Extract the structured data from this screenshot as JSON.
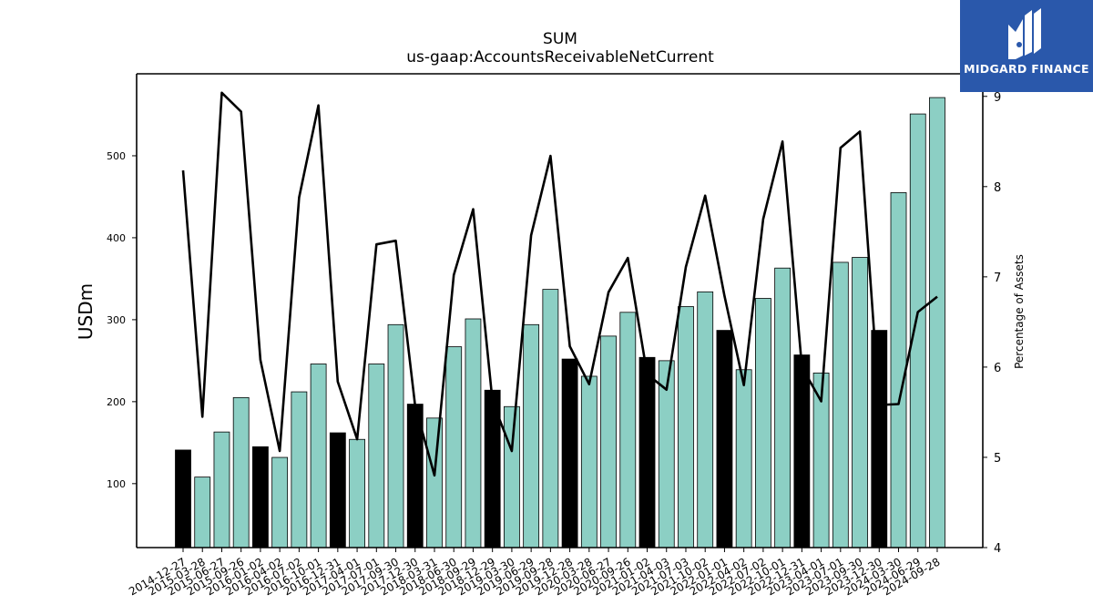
{
  "title": "SUM",
  "subtitle": "us-gaap:AccountsReceivableNetCurrent",
  "logo": {
    "text": "MIDGARD FINANCE",
    "icon": "midgard-m-logo-icon",
    "background": "#2a58ab"
  },
  "colors": {
    "bar": "#8ccfc4",
    "bar_q4": "#000000",
    "line": "#000000"
  },
  "chart_data": {
    "type": "bar",
    "title": "SUM",
    "subtitle": "us-gaap:AccountsReceivableNetCurrent",
    "ylabel": "USDm",
    "y2label": "Percentage of Assets",
    "ylim": [
      22,
      600
    ],
    "y2lim": [
      4,
      9.25
    ],
    "yticks": [
      100,
      200,
      300,
      400,
      500
    ],
    "y2ticks": [
      4,
      5,
      6,
      7,
      8,
      9
    ],
    "categories": [
      "2014-12-27",
      "2015-03-28",
      "2015-06-27",
      "2015-09-26",
      "2016-01-02",
      "2016-04-02",
      "2016-07-02",
      "2016-10-01",
      "2016-12-31",
      "2017-04-01",
      "2017-07-01",
      "2017-09-30",
      "2017-12-30",
      "2018-03-31",
      "2018-06-30",
      "2018-09-29",
      "2018-12-29",
      "2019-03-30",
      "2019-06-29",
      "2019-09-28",
      "2019-12-28",
      "2020-03-28",
      "2020-06-27",
      "2020-09-26",
      "2021-01-02",
      "2021-04-03",
      "2021-07-03",
      "2021-10-02",
      "2022-01-01",
      "2022-04-02",
      "2022-07-02",
      "2022-10-01",
      "2022-12-31",
      "2023-04-01",
      "2023-07-01",
      "2023-09-30",
      "2023-12-30",
      "2024-03-30",
      "2024-06-29",
      "2024-09-28"
    ],
    "series": [
      {
        "name": "",
        "type": "bar",
        "values": [
          141,
          108,
          163,
          205,
          145,
          132,
          212,
          246,
          162,
          154,
          246,
          294,
          197,
          180,
          267,
          301,
          214,
          194,
          294,
          337,
          252,
          231,
          280,
          309,
          254,
          250,
          316,
          334,
          287,
          239,
          326,
          363,
          257,
          235,
          370,
          376,
          287,
          455,
          551,
          571
        ]
      },
      {
        "name": "",
        "type": "line",
        "axis": "right",
        "values": [
          8.18,
          5.45,
          9.04,
          8.83,
          6.08,
          5.07,
          7.88,
          8.9,
          5.84,
          5.2,
          7.36,
          7.4,
          5.57,
          4.8,
          7.02,
          7.75,
          5.62,
          5.07,
          7.46,
          8.34,
          6.23,
          5.81,
          6.83,
          7.21,
          5.92,
          5.75,
          7.11,
          7.9,
          6.79,
          5.8,
          7.64,
          8.5,
          6.0,
          5.62,
          8.43,
          8.61,
          5.58,
          5.59,
          6.61,
          6.78
        ]
      }
    ],
    "q4_highlight_indices": [
      0,
      4,
      8,
      12,
      16,
      20,
      24,
      28,
      32,
      36
    ]
  }
}
